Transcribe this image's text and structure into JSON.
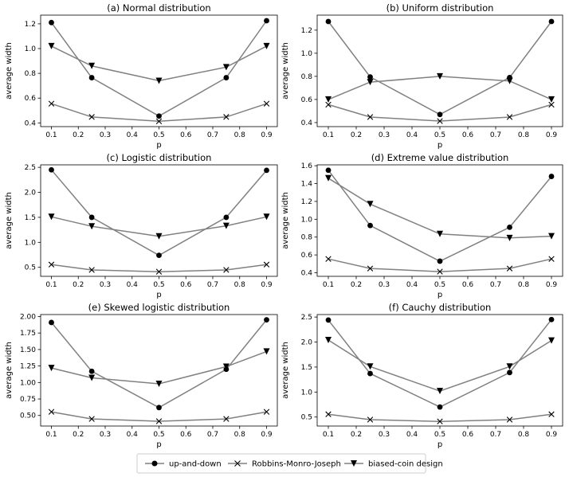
{
  "legend": {
    "items": [
      {
        "label": "up-and-down",
        "marker": "circle"
      },
      {
        "label": "Robbins-Monro-Joseph",
        "marker": "x"
      },
      {
        "label": "biased-coin design",
        "marker": "triangle-down"
      }
    ]
  },
  "colors": {
    "line": "#808080",
    "marker": "#000000",
    "axis": "#000000"
  },
  "chart_data": [
    {
      "type": "line",
      "title": "(a) Normal distribution",
      "xlabel": "p",
      "ylabel": "average width",
      "x": [
        0.1,
        0.25,
        0.5,
        0.75,
        0.9
      ],
      "xlim": [
        0.06,
        0.94
      ],
      "ylim": [
        0.37,
        1.27
      ],
      "xticks": [
        "0.1",
        "0.2",
        "0.3",
        "0.4",
        "0.5",
        "0.6",
        "0.7",
        "0.8",
        "0.9"
      ],
      "yticks": [
        "0.4",
        "0.6",
        "0.8",
        "1.0",
        "1.2"
      ],
      "series": [
        {
          "name": "up-and-down",
          "values": [
            1.21,
            0.765,
            0.455,
            0.765,
            1.225
          ]
        },
        {
          "name": "Robbins-Monro-Joseph",
          "values": [
            0.555,
            0.448,
            0.413,
            0.448,
            0.555
          ]
        },
        {
          "name": "biased-coin design",
          "values": [
            1.02,
            0.86,
            0.74,
            0.85,
            1.02
          ]
        }
      ]
    },
    {
      "type": "line",
      "title": "(b) Uniform distribution",
      "xlabel": "p",
      "ylabel": "average width",
      "x": [
        0.1,
        0.25,
        0.5,
        0.75,
        0.9
      ],
      "xlim": [
        0.06,
        0.94
      ],
      "ylim": [
        0.365,
        1.33
      ],
      "xticks": [
        "0.1",
        "0.2",
        "0.3",
        "0.4",
        "0.5",
        "0.6",
        "0.7",
        "0.8",
        "0.9"
      ],
      "yticks": [
        "0.4",
        "0.6",
        "0.8",
        "1.0",
        "1.2"
      ],
      "series": [
        {
          "name": "up-and-down",
          "values": [
            1.275,
            0.795,
            0.47,
            0.79,
            1.275
          ]
        },
        {
          "name": "Robbins-Monro-Joseph",
          "values": [
            0.555,
            0.448,
            0.413,
            0.448,
            0.555
          ]
        },
        {
          "name": "biased-coin design",
          "values": [
            0.6,
            0.75,
            0.8,
            0.76,
            0.6
          ]
        }
      ]
    },
    {
      "type": "line",
      "title": "(c) Logistic distribution",
      "xlabel": "p",
      "ylabel": "average width",
      "x": [
        0.1,
        0.25,
        0.5,
        0.75,
        0.9
      ],
      "xlim": [
        0.06,
        0.94
      ],
      "ylim": [
        0.32,
        2.55
      ],
      "xticks": [
        "0.1",
        "0.2",
        "0.3",
        "0.4",
        "0.5",
        "0.6",
        "0.7",
        "0.8",
        "0.9"
      ],
      "yticks": [
        "0.5",
        "1.0",
        "1.5",
        "2.0",
        "2.5"
      ],
      "series": [
        {
          "name": "up-and-down",
          "values": [
            2.45,
            1.5,
            0.74,
            1.5,
            2.44
          ]
        },
        {
          "name": "Robbins-Monro-Joseph",
          "values": [
            0.555,
            0.448,
            0.413,
            0.448,
            0.555
          ]
        },
        {
          "name": "biased-coin design",
          "values": [
            1.51,
            1.32,
            1.12,
            1.33,
            1.51
          ]
        }
      ]
    },
    {
      "type": "line",
      "title": "(d) Extreme value distribution",
      "xlabel": "p",
      "ylabel": "average width",
      "x": [
        0.1,
        0.25,
        0.5,
        0.75,
        0.9
      ],
      "xlim": [
        0.06,
        0.94
      ],
      "ylim": [
        0.36,
        1.61
      ],
      "xticks": [
        "0.1",
        "0.2",
        "0.3",
        "0.4",
        "0.5",
        "0.6",
        "0.7",
        "0.8",
        "0.9"
      ],
      "yticks": [
        "0.4",
        "0.6",
        "0.8",
        "1.0",
        "1.2",
        "1.4",
        "1.6"
      ],
      "series": [
        {
          "name": "up-and-down",
          "values": [
            1.55,
            0.93,
            0.53,
            0.91,
            1.48
          ]
        },
        {
          "name": "Robbins-Monro-Joseph",
          "values": [
            0.555,
            0.448,
            0.413,
            0.448,
            0.555
          ]
        },
        {
          "name": "biased-coin design",
          "values": [
            1.46,
            1.17,
            0.835,
            0.79,
            0.81
          ]
        }
      ]
    },
    {
      "type": "line",
      "title": "(e) Skewed logistic distribution",
      "xlabel": "p",
      "ylabel": "average width",
      "x": [
        0.1,
        0.25,
        0.5,
        0.75,
        0.9
      ],
      "xlim": [
        0.06,
        0.94
      ],
      "ylim": [
        0.34,
        2.03
      ],
      "xticks": [
        "0.1",
        "0.2",
        "0.3",
        "0.4",
        "0.5",
        "0.6",
        "0.7",
        "0.8",
        "0.9"
      ],
      "yticks": [
        "0.50",
        "0.75",
        "1.00",
        "1.25",
        "1.50",
        "1.75",
        "2.00"
      ],
      "series": [
        {
          "name": "up-and-down",
          "values": [
            1.91,
            1.17,
            0.62,
            1.2,
            1.95
          ]
        },
        {
          "name": "Robbins-Monro-Joseph",
          "values": [
            0.555,
            0.448,
            0.413,
            0.448,
            0.555
          ]
        },
        {
          "name": "biased-coin design",
          "values": [
            1.22,
            1.07,
            0.98,
            1.24,
            1.47
          ]
        }
      ]
    },
    {
      "type": "line",
      "title": "(f) Cauchy distribution",
      "xlabel": "p",
      "ylabel": "average width",
      "x": [
        0.1,
        0.25,
        0.5,
        0.75,
        0.9
      ],
      "xlim": [
        0.06,
        0.94
      ],
      "ylim": [
        0.32,
        2.55
      ],
      "xticks": [
        "0.1",
        "0.2",
        "0.3",
        "0.4",
        "0.5",
        "0.6",
        "0.7",
        "0.8",
        "0.9"
      ],
      "yticks": [
        "0.5",
        "1.0",
        "1.5",
        "2.0",
        "2.5"
      ],
      "series": [
        {
          "name": "up-and-down",
          "values": [
            2.44,
            1.37,
            0.7,
            1.39,
            2.45
          ]
        },
        {
          "name": "Robbins-Monro-Joseph",
          "values": [
            0.555,
            0.448,
            0.413,
            0.448,
            0.555
          ]
        },
        {
          "name": "biased-coin design",
          "values": [
            2.04,
            1.51,
            1.02,
            1.51,
            2.03
          ]
        }
      ]
    }
  ]
}
